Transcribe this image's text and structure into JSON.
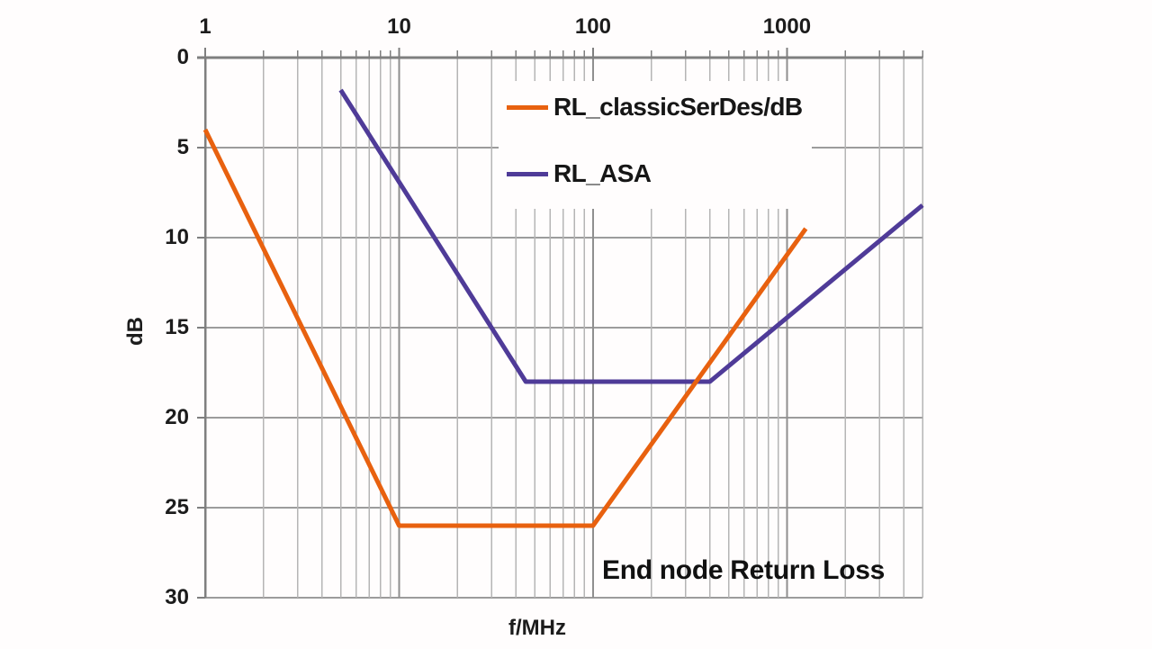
{
  "chart_data": {
    "type": "line",
    "title": "End node Return Loss",
    "xlabel": "f/MHz",
    "ylabel": "dB",
    "x_scale": "log",
    "x_range": [
      1,
      5000
    ],
    "y_range": [
      0,
      30
    ],
    "y_orientation": "0 dB at top, 30 dB at bottom (reversed axis)",
    "x_major_ticks": [
      1,
      10,
      100,
      1000
    ],
    "x_tick_labels": [
      "1",
      "10",
      "100",
      "1000"
    ],
    "y_ticks": [
      0,
      5,
      10,
      15,
      20,
      25,
      30
    ],
    "y_tick_labels": [
      "0",
      "5",
      "10",
      "15",
      "20",
      "25",
      "30"
    ],
    "grid": {
      "horizontal": "major every 5 dB",
      "vertical": "log-decade majors plus minor lines"
    },
    "legend_position": "inside top-center, white background, no border",
    "series": [
      {
        "name": "RL_classicSerDes/dB",
        "color": "#E8610F",
        "points": [
          [
            1,
            4
          ],
          [
            10,
            26
          ],
          [
            100,
            26
          ],
          [
            1250,
            9.5
          ]
        ]
      },
      {
        "name": "RL_ASA",
        "color": "#4F3B98",
        "points": [
          [
            5,
            1.8
          ],
          [
            45,
            18
          ],
          [
            400,
            18
          ],
          [
            5000,
            8.2
          ]
        ]
      }
    ]
  },
  "colors": {
    "background": "#FFFDFD",
    "axis": "#7F7F7F",
    "grid_major_vertical": "#8F8F8F",
    "grid_horizontal": "#9C9C9C",
    "grid_minor": "#B5B5B5",
    "text": "#1C1C1C",
    "series_classic_serdes": "#E8610F",
    "series_asa": "#4F3B98"
  }
}
